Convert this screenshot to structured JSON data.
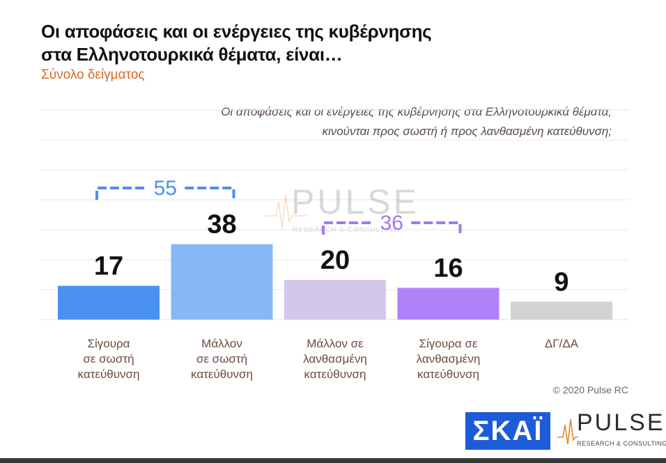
{
  "header": {
    "title_line1": "Οι αποφάσεις και οι ενέργειες της κυβέρνησης",
    "title_line2": "στα Ελληνοτουρκικά θέματα, είναι…",
    "subtitle": "Σύνολο δείγματος"
  },
  "question": {
    "line1": "Οι αποφάσεις και οι ενέργειες της κυβέρνησης στα Ελληνοτουρκικά θέματα,",
    "line2": "κινούνται προς σωστή ή προς λανθασμένη κατεύθυνση;"
  },
  "watermark": {
    "word": "PULSE",
    "sub": "RESEARCH & CONSULTING"
  },
  "chart_data": {
    "type": "bar",
    "categories": [
      [
        "Σίγουρα",
        "σε σωστή",
        "κατεύθυνση"
      ],
      [
        "Μάλλον",
        "σε σωστή",
        "κατεύθυνση"
      ],
      [
        "Μάλλον σε",
        "λανθασμένη",
        "κατεύθυνση"
      ],
      [
        "Σίγουρα σε",
        "λανθασμένη",
        "κατεύθυνση"
      ],
      [
        "ΔΓ/ΔΑ"
      ]
    ],
    "values": [
      17,
      38,
      20,
      16,
      9
    ],
    "bar_colors": [
      "#4a90f0",
      "#86b8f7",
      "#d3c8ea",
      "#b182f7",
      "#d2d2d2"
    ],
    "ylim": [
      0,
      40
    ],
    "grid": true,
    "brackets": [
      {
        "label": "55",
        "from": 0,
        "to": 1,
        "color": "#4a90f0"
      },
      {
        "label": "36",
        "from": 2,
        "to": 3,
        "color": "#a277f0"
      }
    ]
  },
  "footer": {
    "copyright": "© 2020 Pulse RC",
    "skai_logo": "ΣΚΑΪ",
    "pulse_logo": "PULSE",
    "pulse_logo_sub": "RESEARCH & CONSULTING"
  },
  "colors": {
    "title": "#111111",
    "subtitle": "#d96a1f",
    "label": "#6b4a3f",
    "skai_blue": "#1d5bd8"
  }
}
